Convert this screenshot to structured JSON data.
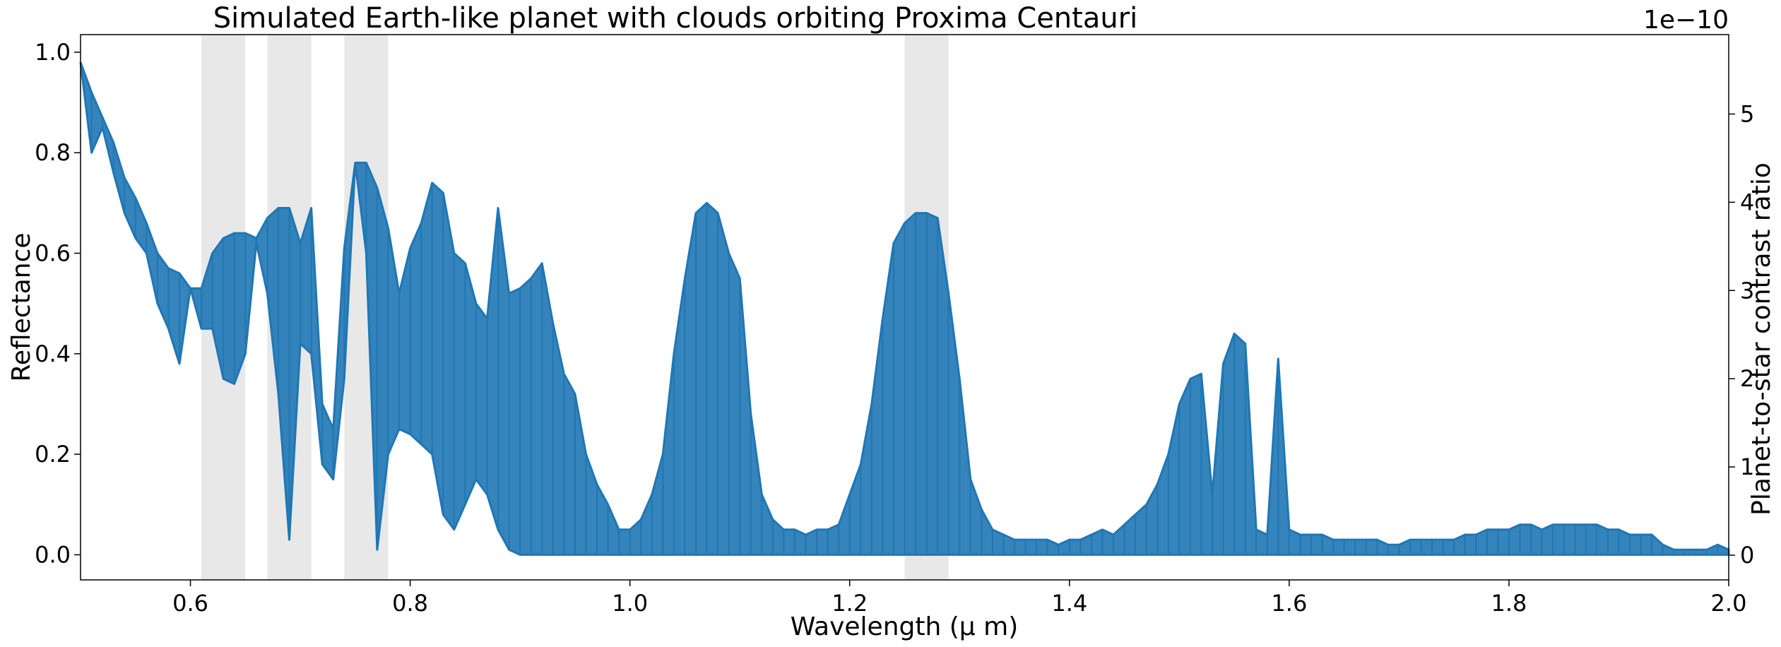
{
  "chart_data": {
    "type": "line",
    "title": "Simulated Earth-like planet with clouds orbiting Proxima Centauri",
    "xlabel": "Wavelength (μ m)",
    "ylabel": "Reflectance",
    "ylabel_right": "Planet-to-star contrast ratio",
    "right_axis_offset_label": "1e−10",
    "xlim": [
      0.5,
      2.0
    ],
    "ylim": [
      -0.05,
      1.035
    ],
    "ylim_right": [
      -0.28,
      5.9
    ],
    "x_ticks": [
      "0.6",
      "0.8",
      "1.0",
      "1.2",
      "1.4",
      "1.6",
      "1.8",
      "2.0"
    ],
    "y_ticks": [
      "0.0",
      "0.2",
      "0.4",
      "0.6",
      "0.8",
      "1.0"
    ],
    "y_ticks_right": [
      "0",
      "1",
      "2",
      "3",
      "4",
      "5"
    ],
    "shaded_bands": [
      [
        0.61,
        0.65
      ],
      [
        0.67,
        0.71
      ],
      [
        0.74,
        0.78
      ],
      [
        1.25,
        1.29
      ]
    ],
    "shade_color": "#e8e8e8",
    "line_color": "#1f77b4",
    "series": [
      {
        "name": "Reflectance",
        "x": [
          0.5,
          0.51,
          0.52,
          0.53,
          0.54,
          0.55,
          0.56,
          0.57,
          0.58,
          0.59,
          0.6,
          0.61,
          0.62,
          0.63,
          0.64,
          0.65,
          0.66,
          0.67,
          0.68,
          0.69,
          0.7,
          0.71,
          0.72,
          0.73,
          0.74,
          0.75,
          0.76,
          0.77,
          0.78,
          0.79,
          0.8,
          0.81,
          0.82,
          0.83,
          0.84,
          0.85,
          0.86,
          0.87,
          0.88,
          0.89,
          0.9,
          0.91,
          0.92,
          0.93,
          0.94,
          0.95,
          0.96,
          0.97,
          0.98,
          0.99,
          1.0,
          1.01,
          1.02,
          1.03,
          1.04,
          1.05,
          1.06,
          1.07,
          1.08,
          1.09,
          1.1,
          1.11,
          1.12,
          1.13,
          1.14,
          1.15,
          1.16,
          1.17,
          1.18,
          1.19,
          1.2,
          1.21,
          1.22,
          1.23,
          1.24,
          1.25,
          1.26,
          1.27,
          1.28,
          1.29,
          1.3,
          1.31,
          1.32,
          1.33,
          1.34,
          1.35,
          1.36,
          1.37,
          1.38,
          1.39,
          1.4,
          1.41,
          1.42,
          1.43,
          1.44,
          1.45,
          1.46,
          1.47,
          1.48,
          1.49,
          1.5,
          1.51,
          1.52,
          1.53,
          1.54,
          1.55,
          1.56,
          1.57,
          1.58,
          1.59,
          1.6,
          1.61,
          1.62,
          1.63,
          1.64,
          1.65,
          1.66,
          1.67,
          1.68,
          1.69,
          1.7,
          1.71,
          1.72,
          1.73,
          1.74,
          1.75,
          1.76,
          1.77,
          1.78,
          1.79,
          1.8,
          1.81,
          1.82,
          1.83,
          1.84,
          1.85,
          1.86,
          1.87,
          1.88,
          1.89,
          1.9,
          1.91,
          1.92,
          1.93,
          1.94,
          1.95,
          1.96,
          1.97,
          1.98,
          1.99,
          2.0
        ],
        "upper": [
          0.98,
          0.92,
          0.87,
          0.82,
          0.75,
          0.71,
          0.66,
          0.6,
          0.57,
          0.56,
          0.53,
          0.53,
          0.6,
          0.63,
          0.64,
          0.64,
          0.63,
          0.67,
          0.69,
          0.69,
          0.62,
          0.69,
          0.3,
          0.25,
          0.61,
          0.78,
          0.78,
          0.73,
          0.65,
          0.52,
          0.61,
          0.66,
          0.74,
          0.72,
          0.6,
          0.58,
          0.5,
          0.47,
          0.69,
          0.52,
          0.53,
          0.55,
          0.58,
          0.46,
          0.36,
          0.32,
          0.2,
          0.14,
          0.1,
          0.05,
          0.05,
          0.07,
          0.12,
          0.2,
          0.4,
          0.55,
          0.68,
          0.7,
          0.68,
          0.6,
          0.55,
          0.28,
          0.12,
          0.07,
          0.05,
          0.05,
          0.04,
          0.05,
          0.05,
          0.06,
          0.12,
          0.18,
          0.3,
          0.47,
          0.62,
          0.66,
          0.68,
          0.68,
          0.67,
          0.52,
          0.35,
          0.15,
          0.09,
          0.05,
          0.04,
          0.03,
          0.03,
          0.03,
          0.03,
          0.02,
          0.03,
          0.03,
          0.04,
          0.05,
          0.04,
          0.06,
          0.08,
          0.1,
          0.14,
          0.2,
          0.3,
          0.35,
          0.36,
          0.12,
          0.38,
          0.44,
          0.42,
          0.05,
          0.04,
          0.39,
          0.05,
          0.04,
          0.04,
          0.04,
          0.03,
          0.03,
          0.03,
          0.03,
          0.03,
          0.02,
          0.02,
          0.03,
          0.03,
          0.03,
          0.03,
          0.03,
          0.04,
          0.04,
          0.05,
          0.05,
          0.05,
          0.06,
          0.06,
          0.05,
          0.06,
          0.06,
          0.06,
          0.06,
          0.06,
          0.05,
          0.05,
          0.04,
          0.04,
          0.04,
          0.02,
          0.01,
          0.01,
          0.01,
          0.01,
          0.02,
          0.01
        ],
        "lower": [
          0.98,
          0.8,
          0.85,
          0.76,
          0.68,
          0.63,
          0.6,
          0.5,
          0.45,
          0.38,
          0.53,
          0.45,
          0.45,
          0.35,
          0.34,
          0.4,
          0.62,
          0.52,
          0.32,
          0.03,
          0.42,
          0.4,
          0.18,
          0.15,
          0.35,
          0.78,
          0.6,
          0.01,
          0.2,
          0.25,
          0.24,
          0.22,
          0.2,
          0.08,
          0.05,
          0.1,
          0.15,
          0.12,
          0.05,
          0.01,
          0.0,
          0.0,
          0.0,
          0.0,
          0.0,
          0.0,
          0.0,
          0.0,
          0.0,
          0.0,
          0.0,
          0.0,
          0.0,
          0.0,
          0.0,
          0.0,
          0.0,
          0.0,
          0.0,
          0.0,
          0.0,
          0.0,
          0.0,
          0.0,
          0.0,
          0.0,
          0.0,
          0.0,
          0.0,
          0.0,
          0.0,
          0.0,
          0.0,
          0.0,
          0.0,
          0.0,
          0.0,
          0.0,
          0.0,
          0.0,
          0.0,
          0.0,
          0.0,
          0.0,
          0.0,
          0.0,
          0.0,
          0.0,
          0.0,
          0.0,
          0.0,
          0.0,
          0.0,
          0.0,
          0.0,
          0.0,
          0.0,
          0.0,
          0.0,
          0.0,
          0.0,
          0.0,
          0.0,
          0.0,
          0.0,
          0.0,
          0.0,
          0.0,
          0.0,
          0.0,
          0.0,
          0.0,
          0.0,
          0.0,
          0.0,
          0.0,
          0.0,
          0.0,
          0.0,
          0.0,
          0.0,
          0.0,
          0.0,
          0.0,
          0.0,
          0.0,
          0.0,
          0.0,
          0.0,
          0.0,
          0.0,
          0.0,
          0.0,
          0.0,
          0.0,
          0.0,
          0.0,
          0.0,
          0.0,
          0.0,
          0.0,
          0.0,
          0.0,
          0.0,
          0.0,
          0.0,
          0.0,
          0.0,
          0.0,
          0.0,
          0.0
        ]
      }
    ]
  }
}
